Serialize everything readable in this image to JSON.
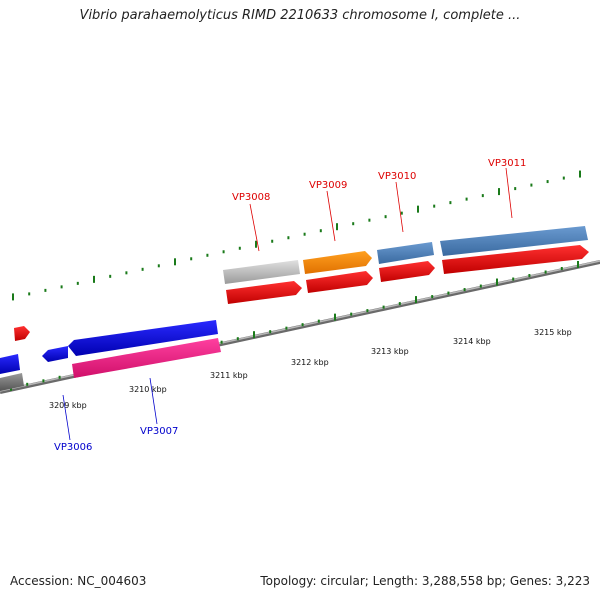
{
  "title": "Vibrio parahaemolyticus RIMD 2210633 chromosome I, complete ...",
  "footer": {
    "accession": "Accession: NC_004603",
    "summary": "Topology: circular; Length: 3,288,558 bp; Genes: 3,223"
  },
  "colors": {
    "backbone": "#8a8a8a",
    "tick": "#1a7a1a",
    "label_red": "#dd0000",
    "label_blue": "#0000cc"
  },
  "axis": {
    "ticks": [
      "3209 kbp",
      "3210 kbp",
      "3211 kbp",
      "3212 kbp",
      "3213 kbp",
      "3214 kbp",
      "3215 kbp"
    ]
  },
  "genes": [
    {
      "name": "VP3006",
      "color": "label_blue"
    },
    {
      "name": "VP3007",
      "color": "label_blue"
    },
    {
      "name": "VP3008",
      "color": "label_red"
    },
    {
      "name": "VP3009",
      "color": "label_red"
    },
    {
      "name": "VP3010",
      "color": "label_red"
    },
    {
      "name": "VP3011",
      "color": "label_red"
    }
  ]
}
